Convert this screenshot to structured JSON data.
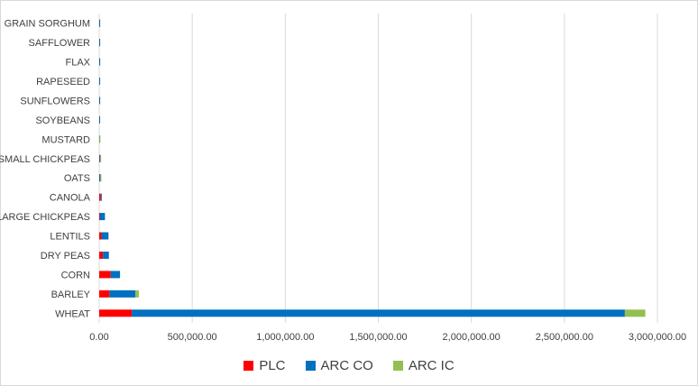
{
  "chart_data": {
    "type": "bar",
    "orientation": "horizontal",
    "stacked": true,
    "categories": [
      "WHEAT",
      "BARLEY",
      "CORN",
      "DRY PEAS",
      "LENTILS",
      "LARGE CHICKPEAS",
      "CANOLA",
      "OATS",
      "SMALL CHICKPEAS",
      "MUSTARD",
      "SOYBEANS",
      "SUNFLOWERS",
      "RAPESEED",
      "FLAX",
      "SAFFLOWER",
      "GRAIN SORGHUM"
    ],
    "series": [
      {
        "name": "PLC",
        "color": "#ff0000",
        "values": [
          175000,
          55000,
          62000,
          20000,
          12000,
          3000,
          9000,
          800,
          1500,
          200,
          300,
          500,
          300,
          600,
          400,
          500
        ]
      },
      {
        "name": "ARC CO",
        "color": "#0070c0",
        "values": [
          2650000,
          140000,
          50000,
          32000,
          38000,
          28000,
          3000,
          6000,
          4000,
          1000,
          3000,
          2500,
          3000,
          2500,
          3000,
          3500
        ]
      },
      {
        "name": "ARC IC",
        "color": "#92c050",
        "values": [
          110000,
          18000,
          0,
          0,
          0,
          0,
          0,
          300,
          2500,
          2000,
          0,
          0,
          0,
          0,
          0,
          0
        ]
      }
    ],
    "xlim": [
      0,
      3000000
    ],
    "ticks": [
      "0.00",
      "500,000.00",
      "1,000,000.00",
      "1,500,000.00",
      "2,000,000.00",
      "2,500,000.00",
      "3,000,000.00"
    ],
    "tick_values": [
      0,
      500000,
      1000000,
      1500000,
      2000000,
      2500000,
      3000000
    ],
    "grid": true,
    "legend_position": "bottom"
  }
}
